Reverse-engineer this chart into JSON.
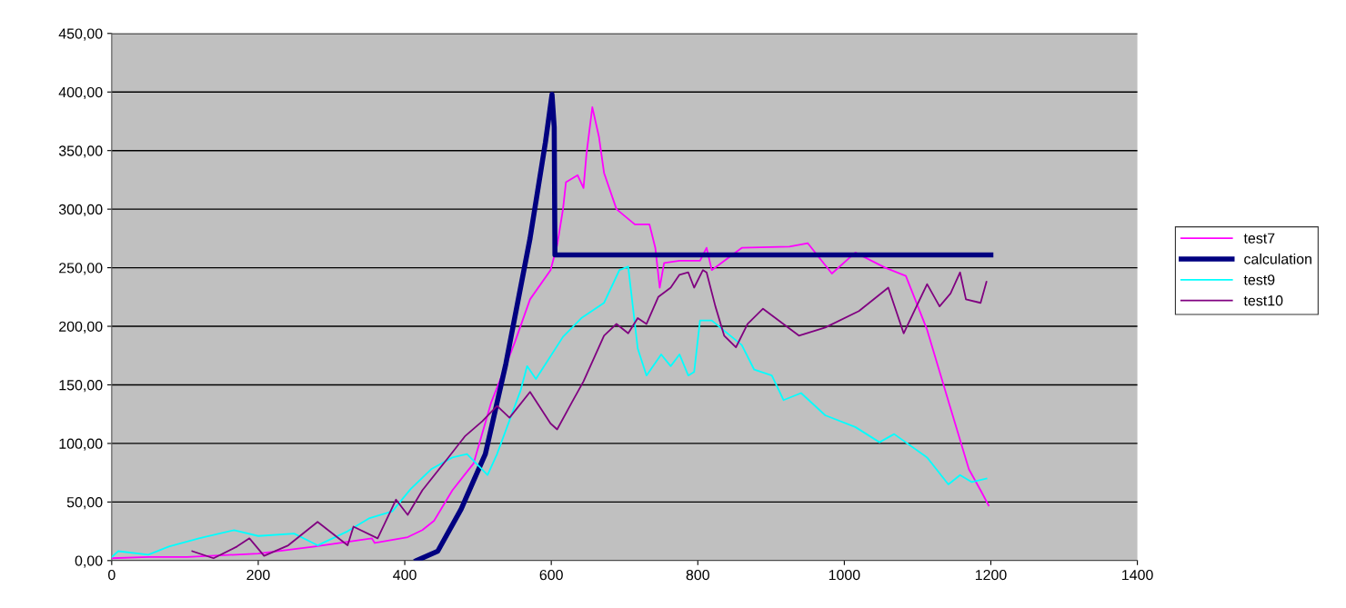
{
  "chart_data": {
    "type": "line",
    "xlim": [
      0,
      1400
    ],
    "xticks": [
      0,
      200,
      400,
      600,
      800,
      1000,
      1200,
      1400
    ],
    "ylim": [
      0,
      450
    ],
    "yticks": [
      {
        "value": 0,
        "label": "0,00"
      },
      {
        "value": 50,
        "label": "50,00"
      },
      {
        "value": 100,
        "label": "100,00"
      },
      {
        "value": 150,
        "label": "150,00"
      },
      {
        "value": 200,
        "label": "200,00"
      },
      {
        "value": 250,
        "label": "250,00"
      },
      {
        "value": 300,
        "label": "300,00"
      },
      {
        "value": 350,
        "label": "350,00"
      },
      {
        "value": 400,
        "label": "400,00"
      },
      {
        "value": 450,
        "label": "450,00"
      }
    ],
    "grid": "y",
    "legend": "right",
    "marker": "none",
    "line_style": "solid",
    "series": [
      {
        "name": "test7",
        "color": "#ff00ff",
        "x": [
          0,
          50,
          103,
          200,
          277,
          355,
          359,
          404,
          424,
          440,
          465,
          494,
          518,
          550,
          571,
          599,
          608,
          616,
          620,
          636,
          644,
          648,
          656,
          665,
          672,
          689,
          714,
          734,
          742,
          748,
          754,
          775,
          803,
          812,
          819,
          860,
          925,
          950,
          983,
          1015,
          1056,
          1084,
          1113,
          1145,
          1170,
          1186,
          1197
        ],
        "values": [
          2,
          3,
          3,
          6,
          12,
          19,
          15,
          20,
          26,
          34,
          60,
          83,
          135,
          186,
          223,
          248,
          269,
          300,
          323,
          329,
          318,
          347,
          387,
          362,
          331,
          300,
          287,
          287,
          267,
          233,
          254,
          256,
          256,
          267,
          248,
          267,
          268,
          271,
          245,
          263,
          250,
          243,
          197,
          130,
          78,
          60,
          47
        ]
      },
      {
        "name": "calculation",
        "color": "#000080",
        "x": [
          416,
          445,
          477,
          510,
          538,
          546,
          571,
          592,
          601,
          604,
          605,
          1200
        ],
        "values": [
          0,
          8,
          44,
          91,
          168,
          194,
          275,
          357,
          398,
          370,
          261,
          261
        ]
      },
      {
        "name": "test9",
        "color": "#00ffff",
        "x": [
          0,
          9,
          50,
          78,
          119,
          167,
          200,
          249,
          281,
          322,
          351,
          383,
          408,
          436,
          465,
          485,
          513,
          526,
          558,
          567,
          579,
          616,
          641,
          672,
          693,
          705,
          718,
          730,
          750,
          763,
          775,
          787,
          795,
          803,
          819,
          860,
          877,
          901,
          917,
          941,
          974,
          1015,
          1048,
          1068,
          1113,
          1142,
          1158,
          1174,
          1194
        ],
        "values": [
          3,
          8,
          5,
          12,
          19,
          26,
          21,
          23,
          13,
          25,
          36,
          42,
          61,
          78,
          88,
          91,
          73,
          91,
          145,
          166,
          155,
          191,
          207,
          220,
          248,
          251,
          181,
          158,
          176,
          166,
          176,
          158,
          161,
          205,
          205,
          184,
          163,
          158,
          137,
          143,
          124,
          114,
          101,
          108,
          88,
          65,
          73,
          67,
          70
        ]
      },
      {
        "name": "test10",
        "color": "#800080",
        "x": [
          110,
          139,
          171,
          188,
          208,
          241,
          281,
          322,
          330,
          363,
          388,
          404,
          424,
          457,
          482,
          506,
          526,
          543,
          571,
          599,
          608,
          628,
          644,
          672,
          689,
          705,
          718,
          730,
          746,
          763,
          775,
          787,
          795,
          807,
          812,
          824,
          836,
          852,
          868,
          889,
          938,
          974,
          1020,
          1060,
          1081,
          1097,
          1113,
          1130,
          1145,
          1158,
          1166,
          1186,
          1194
        ],
        "values": [
          8,
          2,
          12,
          19,
          4,
          13,
          33,
          13,
          29,
          19,
          52,
          39,
          60,
          86,
          106,
          119,
          132,
          122,
          144,
          117,
          112,
          135,
          153,
          192,
          202,
          194,
          207,
          202,
          225,
          233,
          244,
          246,
          233,
          248,
          246,
          217,
          192,
          182,
          202,
          215,
          192,
          199,
          213,
          233,
          194,
          215,
          236,
          217,
          228,
          246,
          223,
          220,
          238
        ]
      }
    ]
  }
}
